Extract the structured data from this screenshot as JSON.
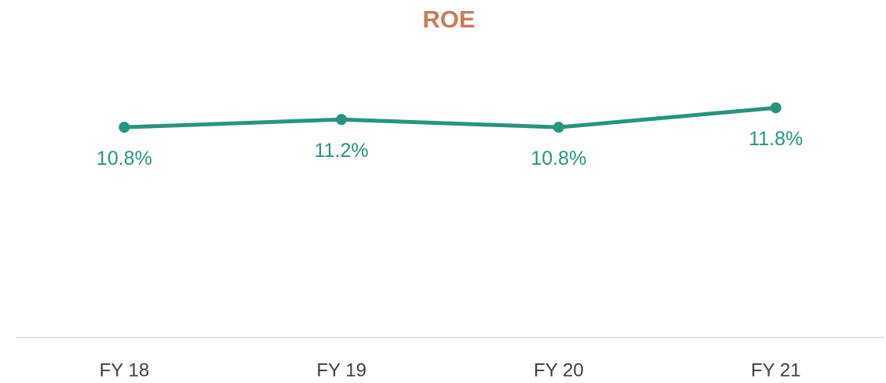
{
  "chart_data": {
    "type": "line",
    "title": "ROE",
    "categories": [
      "FY 18",
      "FY 19",
      "FY 20",
      "FY 21"
    ],
    "series": [
      {
        "name": "ROE",
        "color": "#26957f",
        "values": [
          10.8,
          11.2,
          10.8,
          11.8
        ],
        "value_labels": [
          "10.8%",
          "11.2%",
          "10.8%",
          "11.8%"
        ]
      }
    ],
    "ylim": [
      0,
      15
    ]
  }
}
